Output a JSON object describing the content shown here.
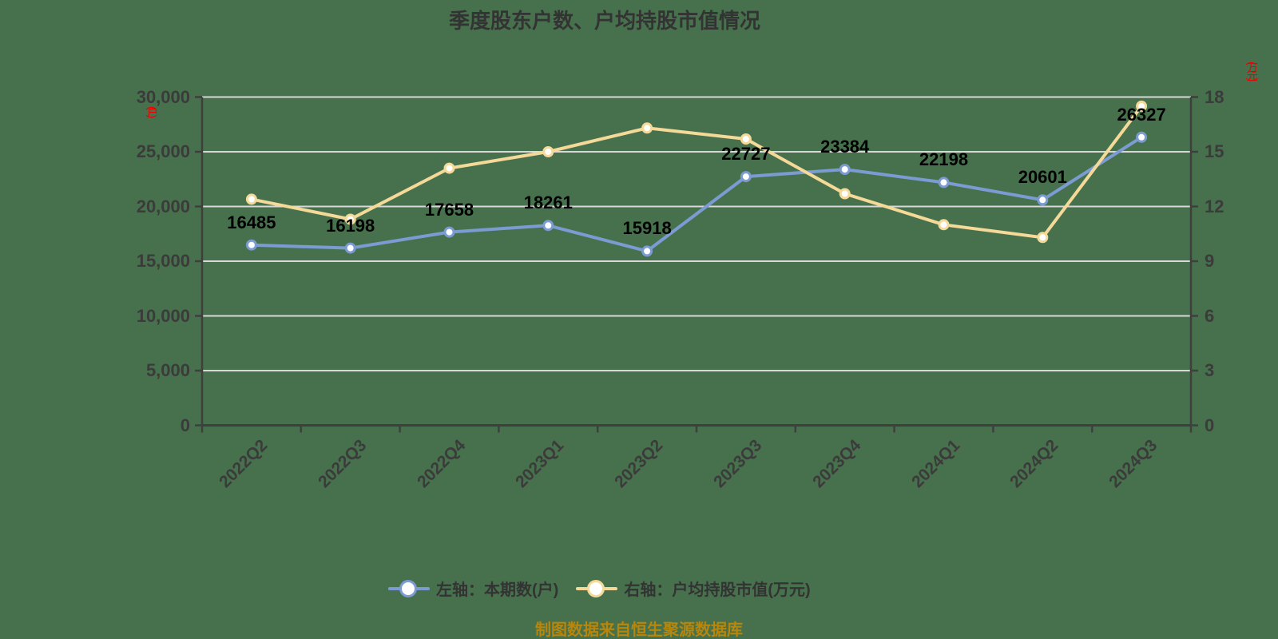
{
  "title": "季度股东户数、户均持股市值情况",
  "footer": "制图数据来自恒生聚源数据库",
  "left_axis": {
    "unit_label": "(户)",
    "tick_labels": [
      "30,000",
      "25,000",
      "20,000",
      "15,000",
      "10,000",
      "5,000",
      "0"
    ]
  },
  "right_axis": {
    "unit_label": "(万元)",
    "tick_labels": [
      "18",
      "15",
      "12",
      "9",
      "6",
      "3",
      "0"
    ]
  },
  "legend": [
    {
      "label": "左轴：本期数(户)",
      "color": "#7b9bd2"
    },
    {
      "label": "右轴：户均持股市值(万元)",
      "color": "#f5d999"
    }
  ],
  "colors": {
    "background": "#46714C",
    "axis_line": "#3f3f3f",
    "grid_line": "#d8d8d8",
    "series_blue": "#7b9bd2",
    "series_yellow": "#f5d999",
    "axis_text": "#3b3b3b",
    "data_label": "#000000",
    "unit_label_red": "#ee0000",
    "footer_text": "#b8860b",
    "title_text": "#333333",
    "marker_fill": "#ffffff"
  },
  "chart_data": {
    "type": "line",
    "title": "季度股东户数、户均持股市值情况",
    "categories": [
      "2022Q2",
      "2022Q3",
      "2022Q4",
      "2023Q1",
      "2023Q2",
      "2023Q3",
      "2023Q4",
      "2024Q1",
      "2024Q2",
      "2024Q3"
    ],
    "series": [
      {
        "name": "左轴：本期数(户)",
        "axis": "left",
        "color": "#7b9bd2",
        "values": [
          16485,
          16198,
          17658,
          18261,
          15918,
          22727,
          23384,
          22198,
          20601,
          26327
        ],
        "show_labels": true
      },
      {
        "name": "右轴：户均持股市值(万元)",
        "axis": "right",
        "color": "#f5d999",
        "values": [
          12.4,
          11.3,
          14.1,
          15.0,
          16.3,
          15.7,
          12.7,
          11.0,
          10.3,
          17.5
        ],
        "show_labels": false
      }
    ],
    "left_ylim": [
      0,
      30000
    ],
    "right_ylim": [
      0,
      18
    ],
    "grid": true,
    "legend_position": "bottom"
  }
}
